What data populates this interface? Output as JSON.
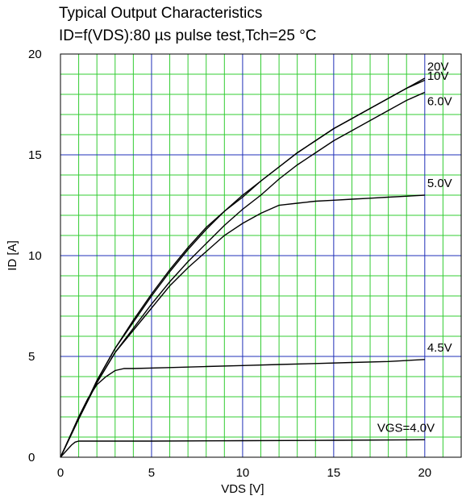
{
  "chart_data": {
    "type": "line",
    "title": "Typical Output Characteristics",
    "subtitle": "ID=f(VDS):80 µs pulse test,Tch=25 °C",
    "xlabel": "VDS [V]",
    "ylabel": "ID [A]",
    "xlim": [
      0,
      22
    ],
    "ylim": [
      0,
      20
    ],
    "x_ticks": [
      0,
      5,
      10,
      15,
      20
    ],
    "y_ticks": [
      0,
      5,
      10,
      15,
      20
    ],
    "x_tick_labels": [
      "0",
      "5",
      "10",
      "15",
      "20"
    ],
    "y_tick_labels": [
      "0",
      "5",
      "10",
      "15",
      "20"
    ],
    "grid": true,
    "major_grid_color": "#1f2fb8",
    "minor_grid_color": "#33cc33",
    "line_color": "#000000",
    "series": [
      {
        "name": "20V",
        "label": "20V",
        "x": [
          0,
          1,
          2,
          3,
          4,
          5,
          6,
          7,
          8,
          9,
          10,
          11,
          12,
          13,
          14,
          15,
          16,
          17,
          18,
          19,
          20
        ],
        "y": [
          0,
          1.9,
          3.8,
          5.4,
          6.8,
          8.1,
          9.3,
          10.4,
          11.4,
          12.2,
          13.0,
          13.7,
          14.4,
          15.1,
          15.7,
          16.3,
          16.8,
          17.3,
          17.8,
          18.3,
          18.7
        ]
      },
      {
        "name": "10V",
        "label": "10V",
        "x": [
          0,
          1,
          2,
          3,
          4,
          5,
          6,
          7,
          8,
          9,
          10,
          11,
          12,
          13,
          14,
          15,
          16,
          17,
          18,
          19,
          20
        ],
        "y": [
          0,
          1.9,
          3.8,
          5.4,
          6.7,
          8.0,
          9.2,
          10.3,
          11.3,
          12.2,
          12.9,
          13.7,
          14.4,
          15.1,
          15.7,
          16.3,
          16.8,
          17.3,
          17.8,
          18.3,
          18.8
        ]
      },
      {
        "name": "6.0V",
        "label": "6.0V",
        "x": [
          0,
          1,
          2,
          3,
          4,
          5,
          6,
          7,
          8,
          9,
          10,
          11,
          12,
          13,
          14,
          15,
          16,
          17,
          18,
          19,
          20
        ],
        "y": [
          0,
          1.9,
          3.7,
          5.2,
          6.4,
          7.6,
          8.7,
          9.7,
          10.6,
          11.5,
          12.3,
          13.0,
          13.8,
          14.5,
          15.1,
          15.7,
          16.2,
          16.7,
          17.2,
          17.7,
          18.1
        ]
      },
      {
        "name": "5.0V",
        "label": "5.0V",
        "x": [
          0,
          1,
          2,
          3,
          4,
          5,
          6,
          7,
          8,
          9,
          10,
          11,
          12,
          13,
          14,
          15,
          16,
          17,
          18,
          19,
          20
        ],
        "y": [
          0,
          1.9,
          3.7,
          5.2,
          6.3,
          7.4,
          8.5,
          9.4,
          10.2,
          11.0,
          11.6,
          12.1,
          12.5,
          12.6,
          12.7,
          12.75,
          12.8,
          12.85,
          12.9,
          12.95,
          13.0
        ]
      },
      {
        "name": "4.5V",
        "label": "4.5V",
        "x": [
          0,
          0.5,
          1,
          1.5,
          2,
          2.5,
          3,
          3.5,
          4,
          6,
          8,
          10,
          12,
          14,
          16,
          18,
          20
        ],
        "y": [
          0,
          1.0,
          2.0,
          2.9,
          3.6,
          4.0,
          4.3,
          4.4,
          4.4,
          4.45,
          4.5,
          4.55,
          4.6,
          4.65,
          4.7,
          4.75,
          4.85
        ]
      },
      {
        "name": "VGS=4.0V",
        "label": "VGS=4.0V",
        "x": [
          0,
          0.3,
          0.6,
          0.8,
          1,
          2,
          5,
          10,
          15,
          20
        ],
        "y": [
          0,
          0.3,
          0.6,
          0.75,
          0.8,
          0.8,
          0.8,
          0.82,
          0.84,
          0.87
        ]
      }
    ]
  }
}
